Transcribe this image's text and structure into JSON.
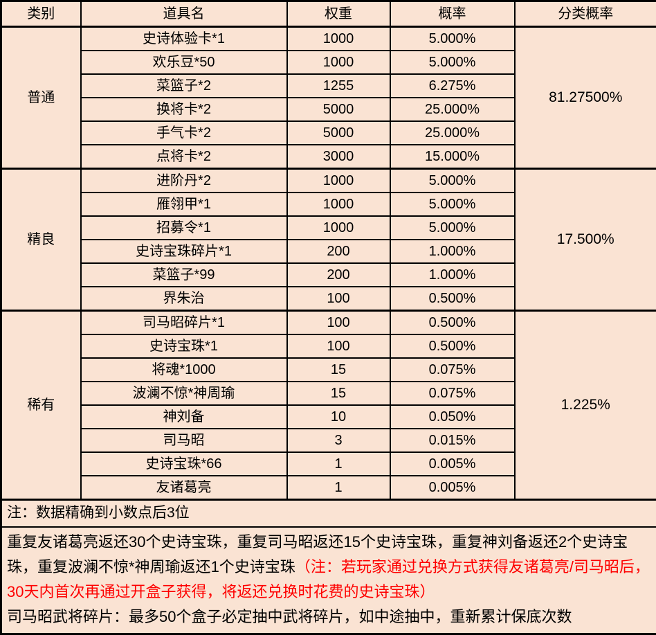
{
  "page": {
    "background_color": "#fae3d3",
    "border_color": "#000000",
    "warning_text_color": "#fe0000"
  },
  "table": {
    "headers": [
      "类别",
      "道具名",
      "权重",
      "概率",
      "分类概率"
    ],
    "groups": [
      {
        "category": "普通",
        "category_rate": "81.27500%",
        "items": [
          {
            "name": "史诗体验卡*1",
            "weight": "1000",
            "rate": "5.000%"
          },
          {
            "name": "欢乐豆*50",
            "weight": "1000",
            "rate": "5.000%"
          },
          {
            "name": "菜篮子*2",
            "weight": "1255",
            "rate": "6.275%"
          },
          {
            "name": "换将卡*2",
            "weight": "5000",
            "rate": "25.000%"
          },
          {
            "name": "手气卡*2",
            "weight": "5000",
            "rate": "25.000%"
          },
          {
            "name": "点将卡*2",
            "weight": "3000",
            "rate": "15.000%"
          }
        ]
      },
      {
        "category": "精良",
        "category_rate": "17.500%",
        "items": [
          {
            "name": "进阶丹*2",
            "weight": "1000",
            "rate": "5.000%"
          },
          {
            "name": "雁翎甲*1",
            "weight": "1000",
            "rate": "5.000%"
          },
          {
            "name": "招募令*1",
            "weight": "1000",
            "rate": "5.000%"
          },
          {
            "name": "史诗宝珠碎片*1",
            "weight": "200",
            "rate": "1.000%"
          },
          {
            "name": "菜篮子*99",
            "weight": "200",
            "rate": "1.000%"
          },
          {
            "name": "界朱治",
            "weight": "100",
            "rate": "0.500%"
          }
        ]
      },
      {
        "category": "稀有",
        "category_rate": "1.225%",
        "items": [
          {
            "name": "司马昭碎片*1",
            "weight": "100",
            "rate": "0.500%"
          },
          {
            "name": "史诗宝珠*1",
            "weight": "100",
            "rate": "0.500%"
          },
          {
            "name": "将魂*1000",
            "weight": "15",
            "rate": "0.075%"
          },
          {
            "name": "波澜不惊*神周瑜",
            "weight": "15",
            "rate": "0.075%"
          },
          {
            "name": "神刘备",
            "weight": "10",
            "rate": "0.050%"
          },
          {
            "name": "司马昭",
            "weight": "3",
            "rate": "0.015%"
          },
          {
            "name": "史诗宝珠*66",
            "weight": "1",
            "rate": "0.005%"
          },
          {
            "name": "友诸葛亮",
            "weight": "1",
            "rate": "0.005%"
          }
        ]
      }
    ]
  },
  "notes": {
    "precision_note": "注：数据精确到小数点后3位",
    "refund_note_black": "重复友诸葛亮返还30个史诗宝珠，重复司马昭返还15个史诗宝珠，重复神刘备返还2个史诗宝珠，重复波澜不惊*神周瑜返还1个史诗宝珠",
    "refund_note_red": "（注：若玩家通过兑换方式获得友诸葛亮/司马昭后，30天内首次再通过开盒子获得，将返还兑换时花费的史诗宝珠）",
    "pity_note": "司马昭武将碎片：最多50个盒子必定抽中武将碎片，如中途抽中，重新累计保底次数"
  }
}
